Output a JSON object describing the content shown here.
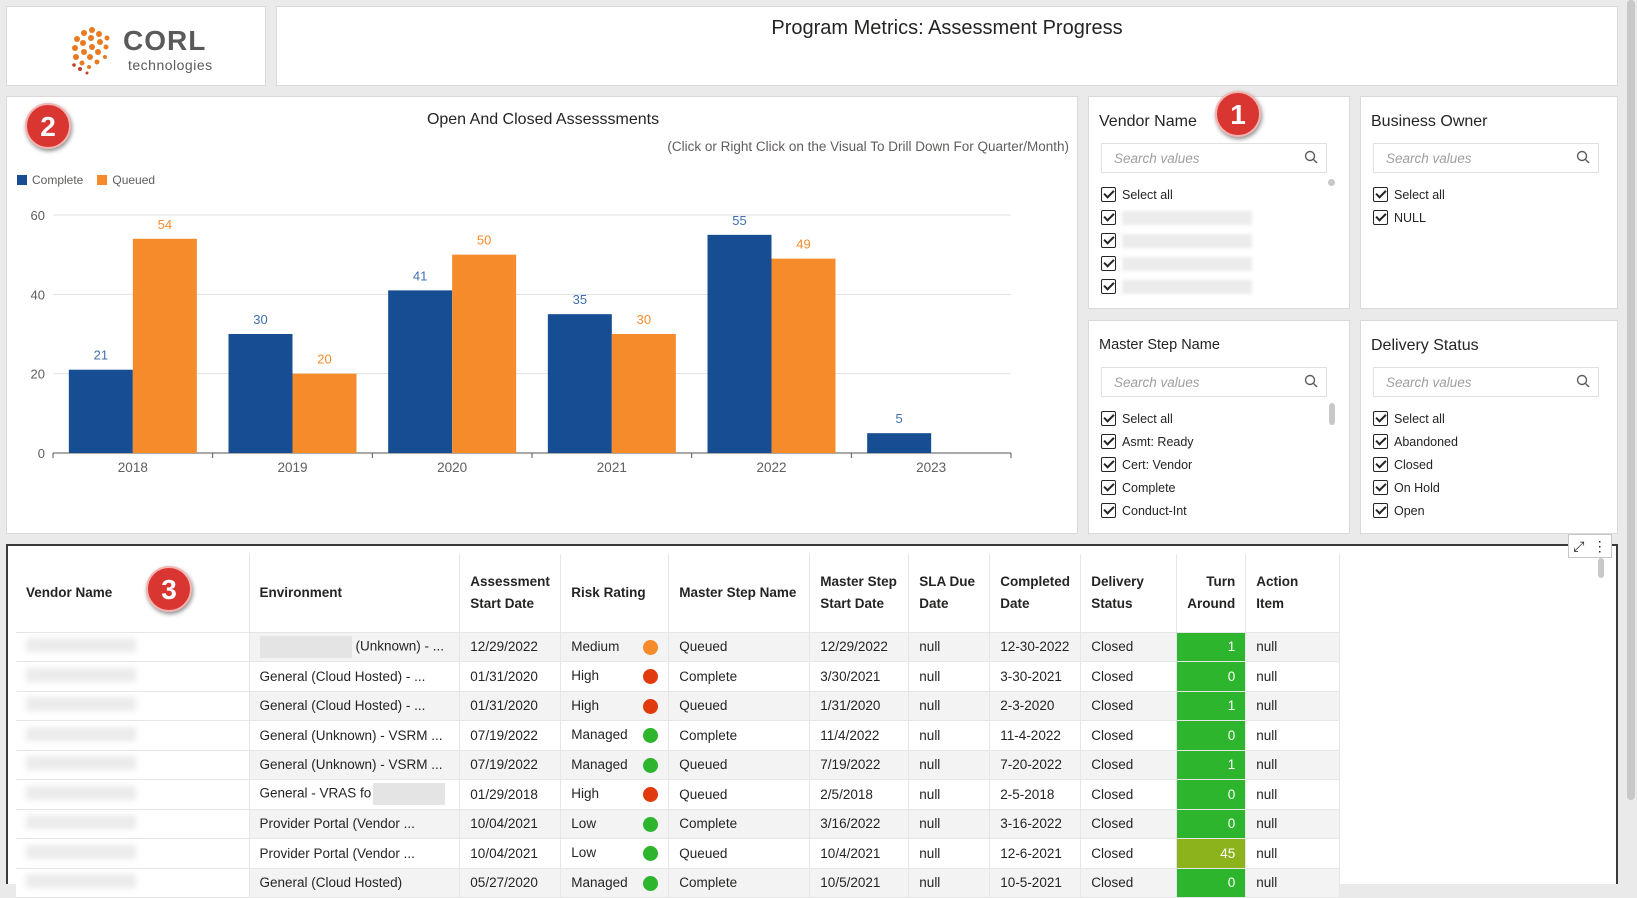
{
  "header": {
    "logo_word": "CORL",
    "logo_sub": "technologies",
    "title": "Program Metrics: Assessment Progress"
  },
  "badges": [
    "1",
    "2",
    "3"
  ],
  "chart_data": {
    "type": "bar",
    "title": "Open And Closed Assesssments",
    "subtitle": "(Click or Right Click on the Visual To Drill Down For Quarter/Month)",
    "categories": [
      "2018",
      "2019",
      "2020",
      "2021",
      "2022",
      "2023"
    ],
    "series": [
      {
        "name": "Complete",
        "color": "#174e93",
        "values": [
          21,
          30,
          41,
          35,
          55,
          5
        ]
      },
      {
        "name": "Queued",
        "color": "#f58b2a",
        "values": [
          54,
          20,
          50,
          30,
          49,
          null
        ]
      }
    ],
    "ylim": [
      0,
      60
    ],
    "yticks": [
      "0",
      "20",
      "40",
      "60"
    ],
    "grid": true,
    "legend": "top-left"
  },
  "slicers": {
    "vendor": {
      "title": "Vendor Name",
      "placeholder": "Search values",
      "items": [
        "Select all"
      ]
    },
    "owner": {
      "title": "Business Owner",
      "placeholder": "Search values",
      "items": [
        "Select all",
        "NULL"
      ]
    },
    "step": {
      "title": "Master Step Name",
      "placeholder": "Search values",
      "items": [
        "Select all",
        "Asmt: Ready",
        "Cert: Vendor",
        "Complete",
        "Conduct-Int"
      ]
    },
    "status": {
      "title": "Delivery Status",
      "placeholder": "Search values",
      "items": [
        "Select all",
        "Abandoned",
        "Closed",
        "On Hold",
        "Open"
      ]
    }
  },
  "table": {
    "headers": [
      "Vendor Name",
      "Environment",
      "Assessment Start Date",
      "Risk Rating",
      "Master Step Name",
      "Master Step Start Date",
      "SLA Due Date",
      "Completed Date",
      "Delivery Status",
      "Turn Around",
      "Action Item"
    ],
    "rows": [
      {
        "env": "(Unknown) - ...",
        "start": "12/29/2022",
        "risk": "Medium",
        "risk_color": "#f58b2a",
        "step": "Queued",
        "step_start": "12/29/2022",
        "sla": "null",
        "completed": "12-30-2022",
        "status": "Closed",
        "turn": "1",
        "turn_color": "#2db52d",
        "action": "null"
      },
      {
        "env": "General (Cloud Hosted) - ...",
        "start": "01/31/2020",
        "risk": "High",
        "risk_color": "#e03a0e",
        "step": "Complete",
        "step_start": "3/30/2021",
        "sla": "null",
        "completed": "3-30-2021",
        "status": "Closed",
        "turn": "0",
        "turn_color": "#2db52d",
        "action": "null"
      },
      {
        "env": "General (Cloud Hosted) - ...",
        "start": "01/31/2020",
        "risk": "High",
        "risk_color": "#e03a0e",
        "step": "Queued",
        "step_start": "1/31/2020",
        "sla": "null",
        "completed": "2-3-2020",
        "status": "Closed",
        "turn": "1",
        "turn_color": "#2db52d",
        "action": "null"
      },
      {
        "env": "General (Unknown) - VSRM ...",
        "start": "07/19/2022",
        "risk": "Managed",
        "risk_color": "#2db52d",
        "step": "Complete",
        "step_start": "11/4/2022",
        "sla": "null",
        "completed": "11-4-2022",
        "status": "Closed",
        "turn": "0",
        "turn_color": "#2db52d",
        "action": "null"
      },
      {
        "env": "General (Unknown) - VSRM ...",
        "start": "07/19/2022",
        "risk": "Managed",
        "risk_color": "#2db52d",
        "step": "Queued",
        "step_start": "7/19/2022",
        "sla": "null",
        "completed": "7-20-2022",
        "status": "Closed",
        "turn": "1",
        "turn_color": "#2db52d",
        "action": "null"
      },
      {
        "env": "General - VRAS fo",
        "start": "01/29/2018",
        "risk": "High",
        "risk_color": "#e03a0e",
        "step": "Queued",
        "step_start": "2/5/2018",
        "sla": "null",
        "completed": "2-5-2018",
        "status": "Closed",
        "turn": "0",
        "turn_color": "#2db52d",
        "action": "null"
      },
      {
        "env": "Provider Portal (Vendor ...",
        "start": "10/04/2021",
        "risk": "Low",
        "risk_color": "#2db52d",
        "step": "Complete",
        "step_start": "3/16/2022",
        "sla": "null",
        "completed": "3-16-2022",
        "status": "Closed",
        "turn": "0",
        "turn_color": "#2db52d",
        "action": "null"
      },
      {
        "env": "Provider Portal (Vendor ...",
        "start": "10/04/2021",
        "risk": "Low",
        "risk_color": "#2db52d",
        "step": "Queued",
        "step_start": "10/4/2021",
        "sla": "null",
        "completed": "12-6-2021",
        "status": "Closed",
        "turn": "45",
        "turn_color": "#8db31c",
        "action": "null"
      },
      {
        "env": "General (Cloud Hosted)",
        "start": "05/27/2020",
        "risk": "Managed",
        "risk_color": "#2db52d",
        "step": "Complete",
        "step_start": "10/5/2021",
        "sla": "null",
        "completed": "10-5-2021",
        "status": "Closed",
        "turn": "0",
        "turn_color": "#2db52d",
        "action": "null"
      }
    ]
  }
}
